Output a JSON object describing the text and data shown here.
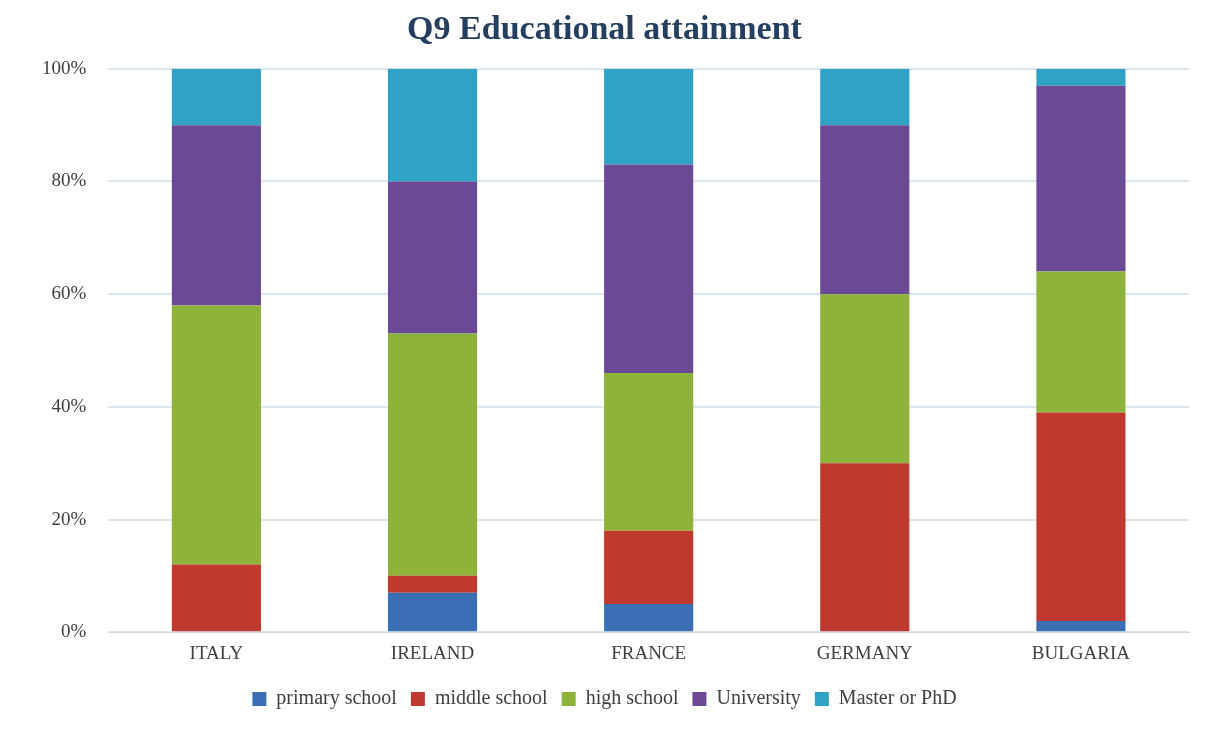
{
  "chart_data": {
    "type": "bar",
    "title": "Q9 Educational attainment",
    "stacked": true,
    "categories": [
      "ITALY",
      "IRELAND",
      "FRANCE",
      "GERMANY",
      "BULGARIA"
    ],
    "series": [
      {
        "name": "primary school",
        "color": "#3a6fb5",
        "values": [
          0,
          7,
          5,
          0,
          2
        ]
      },
      {
        "name": "middle school",
        "color": "#c0392f",
        "values": [
          12,
          3,
          13,
          30,
          37
        ]
      },
      {
        "name": "high school",
        "color": "#8db33a",
        "values": [
          46,
          43,
          28,
          30,
          25
        ]
      },
      {
        "name": "University",
        "color": "#6b4a95",
        "values": [
          32,
          27,
          37,
          30,
          33
        ]
      },
      {
        "name": "Master or PhD",
        "color": "#2ea3c4",
        "values": [
          10,
          20,
          17,
          10,
          3
        ]
      }
    ],
    "ylim": [
      0,
      100
    ],
    "yticks": [
      {
        "value": 0,
        "label": "0%"
      },
      {
        "value": 20,
        "label": "20%"
      },
      {
        "value": 40,
        "label": "40%"
      },
      {
        "value": 60,
        "label": "60%"
      },
      {
        "value": 80,
        "label": "80%"
      },
      {
        "value": 100,
        "label": "100%"
      }
    ],
    "grid": "y",
    "legend": "bottom"
  }
}
